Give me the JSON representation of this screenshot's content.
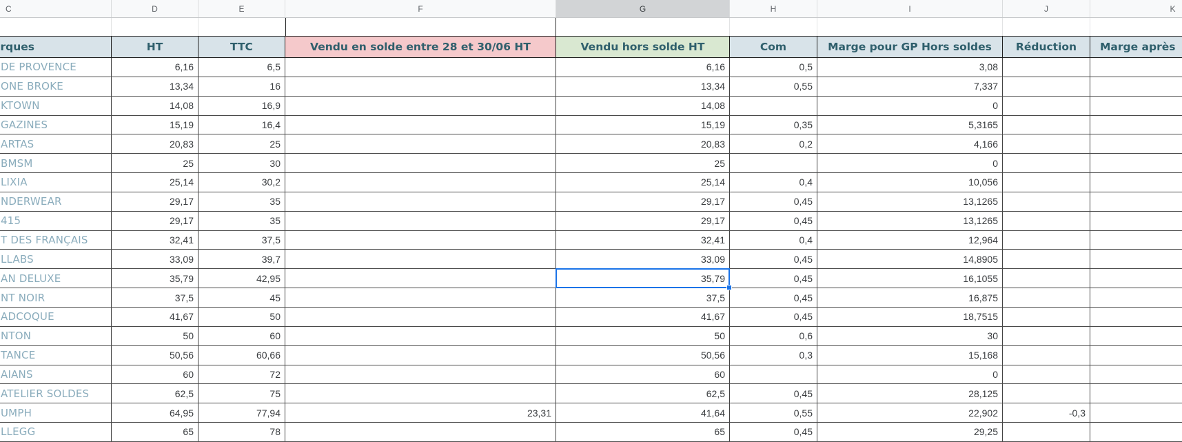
{
  "spreadsheet": {
    "column_letters": [
      "C",
      "D",
      "E",
      "F",
      "G",
      "H",
      "I",
      "J",
      "K"
    ],
    "selected_column_letter": "G",
    "header": {
      "marques": "arques",
      "ht": "HT",
      "ttc": "TTC",
      "vendu_solde": "Vendu en solde entre 28 et 30/06 HT",
      "vendu_hors_solde": "Vendu hors solde HT",
      "com": "Com",
      "marge_gp": "Marge pour GP Hors soldes",
      "reduction": "Réduction",
      "marge_apres": "Marge après"
    },
    "colors": {
      "header_blue_bg": "#d8e3e9",
      "header_pink_bg": "#f5c9cb",
      "header_green_bg": "#d9e8d1",
      "header_text": "#2f5f6c",
      "brand_text": "#8aacbc",
      "number_text": "#393c3f",
      "selection_blue": "#1a73e8",
      "selected_column_header_bg": "#d2d4d6"
    },
    "selected_cell": {
      "row_index": 11,
      "column": "vendu_hors_solde",
      "value": "35,79"
    },
    "rows": [
      {
        "marque": "DE PROVENCE",
        "ht": "6,16",
        "ttc": "6,5",
        "vendu_solde": "",
        "vendu_hors_solde": "6,16",
        "com": "0,5",
        "marge_gp": "3,08",
        "reduction": "",
        "marge_apres": ""
      },
      {
        "marque": "ONE BROKE",
        "ht": "13,34",
        "ttc": "16",
        "vendu_solde": "",
        "vendu_hors_solde": "13,34",
        "com": "0,55",
        "marge_gp": "7,337",
        "reduction": "",
        "marge_apres": ""
      },
      {
        "marque": "KTOWN",
        "ht": "14,08",
        "ttc": "16,9",
        "vendu_solde": "",
        "vendu_hors_solde": "14,08",
        "com": "",
        "marge_gp": "0",
        "reduction": "",
        "marge_apres": ""
      },
      {
        "marque": "GAZINES",
        "ht": "15,19",
        "ttc": "16,4",
        "vendu_solde": "",
        "vendu_hors_solde": "15,19",
        "com": "0,35",
        "marge_gp": "5,3165",
        "reduction": "",
        "marge_apres": ""
      },
      {
        "marque": "ARTAS",
        "ht": "20,83",
        "ttc": "25",
        "vendu_solde": "",
        "vendu_hors_solde": "20,83",
        "com": "0,2",
        "marge_gp": "4,166",
        "reduction": "",
        "marge_apres": ""
      },
      {
        "marque": "BMSM",
        "ht": "25",
        "ttc": "30",
        "vendu_solde": "",
        "vendu_hors_solde": "25",
        "com": "",
        "marge_gp": "0",
        "reduction": "",
        "marge_apres": ""
      },
      {
        "marque": "LIXIA",
        "ht": "25,14",
        "ttc": "30,2",
        "vendu_solde": "",
        "vendu_hors_solde": "25,14",
        "com": "0,4",
        "marge_gp": "10,056",
        "reduction": "",
        "marge_apres": ""
      },
      {
        "marque": "NDERWEAR",
        "ht": "29,17",
        "ttc": "35",
        "vendu_solde": "",
        "vendu_hors_solde": "29,17",
        "com": "0,45",
        "marge_gp": "13,1265",
        "reduction": "",
        "marge_apres": ""
      },
      {
        "marque": "415",
        "ht": "29,17",
        "ttc": "35",
        "vendu_solde": "",
        "vendu_hors_solde": "29,17",
        "com": "0,45",
        "marge_gp": "13,1265",
        "reduction": "",
        "marge_apres": ""
      },
      {
        "marque": "T DES FRANÇAIS",
        "ht": "32,41",
        "ttc": "37,5",
        "vendu_solde": "",
        "vendu_hors_solde": "32,41",
        "com": "0,4",
        "marge_gp": "12,964",
        "reduction": "",
        "marge_apres": ""
      },
      {
        "marque": "LLABS",
        "ht": "33,09",
        "ttc": "39,7",
        "vendu_solde": "",
        "vendu_hors_solde": "33,09",
        "com": "0,45",
        "marge_gp": "14,8905",
        "reduction": "",
        "marge_apres": ""
      },
      {
        "marque": "AN DELUXE",
        "ht": "35,79",
        "ttc": "42,95",
        "vendu_solde": "",
        "vendu_hors_solde": "35,79",
        "com": "0,45",
        "marge_gp": "16,1055",
        "reduction": "",
        "marge_apres": ""
      },
      {
        "marque": "NT NOIR",
        "ht": "37,5",
        "ttc": "45",
        "vendu_solde": "",
        "vendu_hors_solde": "37,5",
        "com": "0,45",
        "marge_gp": "16,875",
        "reduction": "",
        "marge_apres": ""
      },
      {
        "marque": "ADCOQUE",
        "ht": "41,67",
        "ttc": "50",
        "vendu_solde": "",
        "vendu_hors_solde": "41,67",
        "com": "0,45",
        "marge_gp": "18,7515",
        "reduction": "",
        "marge_apres": ""
      },
      {
        "marque": "NTON",
        "ht": "50",
        "ttc": "60",
        "vendu_solde": "",
        "vendu_hors_solde": "50",
        "com": "0,6",
        "marge_gp": "30",
        "reduction": "",
        "marge_apres": ""
      },
      {
        "marque": "TANCE",
        "ht": "50,56",
        "ttc": "60,66",
        "vendu_solde": "",
        "vendu_hors_solde": "50,56",
        "com": "0,3",
        "marge_gp": "15,168",
        "reduction": "",
        "marge_apres": ""
      },
      {
        "marque": "AIANS",
        "ht": "60",
        "ttc": "72",
        "vendu_solde": "",
        "vendu_hors_solde": "60",
        "com": "",
        "marge_gp": "0",
        "reduction": "",
        "marge_apres": ""
      },
      {
        "marque": "ATELIER SOLDES",
        "ht": "62,5",
        "ttc": "75",
        "vendu_solde": "",
        "vendu_hors_solde": "62,5",
        "com": "0,45",
        "marge_gp": "28,125",
        "reduction": "",
        "marge_apres": ""
      },
      {
        "marque": "UMPH",
        "ht": "64,95",
        "ttc": "77,94",
        "vendu_solde": "23,31",
        "vendu_hors_solde": "41,64",
        "com": "0,55",
        "marge_gp": "22,902",
        "reduction": "-0,3",
        "marge_apres": ""
      },
      {
        "marque": "LLEGG",
        "ht": "65",
        "ttc": "78",
        "vendu_solde": "",
        "vendu_hors_solde": "65",
        "com": "0,45",
        "marge_gp": "29,25",
        "reduction": "",
        "marge_apres": ""
      }
    ]
  }
}
